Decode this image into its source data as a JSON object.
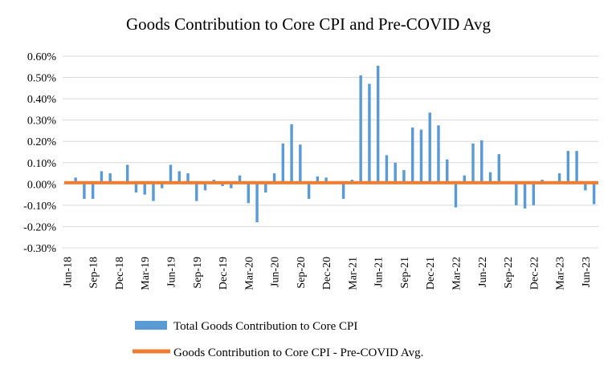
{
  "chart_data": {
    "type": "bar",
    "title": "Goods Contribution to Core CPI and Pre-COVID Avg",
    "ylim": [
      -0.3,
      0.6
    ],
    "y_ticks": [
      "0.60%",
      "0.50%",
      "0.40%",
      "0.30%",
      "0.20%",
      "0.10%",
      "0.00%",
      "-0.10%",
      "-0.20%",
      "-0.30%"
    ],
    "y_tick_values": [
      0.6,
      0.5,
      0.4,
      0.3,
      0.2,
      0.1,
      0.0,
      -0.1,
      -0.2,
      -0.3
    ],
    "x_tick_labels": [
      "Jun-18",
      "Sep-18",
      "Dec-18",
      "Mar-19",
      "Jun-19",
      "Sep-19",
      "Dec-19",
      "Mar-20",
      "Jun-20",
      "Sep-20",
      "Dec-20",
      "Mar-21",
      "Jun-21",
      "Sep-21",
      "Dec-21",
      "Mar-22",
      "Jun-22",
      "Sep-22",
      "Dec-22",
      "Mar-23",
      "Jun-23"
    ],
    "x_tick_every": 3,
    "categories": [
      "Jun-18",
      "Jul-18",
      "Aug-18",
      "Sep-18",
      "Oct-18",
      "Nov-18",
      "Dec-18",
      "Jan-19",
      "Feb-19",
      "Mar-19",
      "Apr-19",
      "May-19",
      "Jun-19",
      "Jul-19",
      "Aug-19",
      "Sep-19",
      "Oct-19",
      "Nov-19",
      "Dec-19",
      "Jan-20",
      "Feb-20",
      "Mar-20",
      "Apr-20",
      "May-20",
      "Jun-20",
      "Jul-20",
      "Aug-20",
      "Sep-20",
      "Oct-20",
      "Nov-20",
      "Dec-20",
      "Jan-21",
      "Feb-21",
      "Mar-21",
      "Apr-21",
      "May-21",
      "Jun-21",
      "Jul-21",
      "Aug-21",
      "Sep-21",
      "Oct-21",
      "Nov-21",
      "Dec-21",
      "Jan-22",
      "Feb-22",
      "Mar-22",
      "Apr-22",
      "May-22",
      "Jun-22",
      "Jul-22",
      "Aug-22",
      "Sep-22",
      "Oct-22",
      "Nov-22",
      "Dec-22",
      "Jan-23",
      "Feb-23",
      "Mar-23",
      "Apr-23",
      "May-23",
      "Jun-23",
      "Jul-23"
    ],
    "series": [
      {
        "name": "Total Goods Contribution to Core CPI",
        "type": "bar",
        "color": "#5b9bd5",
        "values": [
          0.01,
          0.03,
          -0.07,
          -0.07,
          0.06,
          0.05,
          0.01,
          0.09,
          -0.04,
          -0.05,
          -0.08,
          -0.02,
          0.09,
          0.06,
          0.05,
          -0.08,
          -0.03,
          0.02,
          -0.01,
          -0.02,
          0.04,
          -0.09,
          -0.18,
          -0.04,
          0.05,
          0.19,
          0.28,
          0.185,
          -0.07,
          0.035,
          0.03,
          0.0,
          -0.07,
          0.02,
          0.51,
          0.47,
          0.555,
          0.135,
          0.1,
          0.065,
          0.265,
          0.255,
          0.335,
          0.275,
          0.115,
          -0.11,
          0.04,
          0.19,
          0.205,
          0.055,
          0.14,
          0.0,
          -0.1,
          -0.115,
          -0.1,
          0.02,
          0.0,
          0.05,
          0.155,
          0.155,
          -0.03,
          -0.095
        ]
      },
      {
        "name": "Goods Contribution to Core CPI - Pre-COVID Avg.",
        "type": "line",
        "color": "#ed7d31",
        "value": 0.006
      }
    ],
    "legend": "bottom"
  }
}
